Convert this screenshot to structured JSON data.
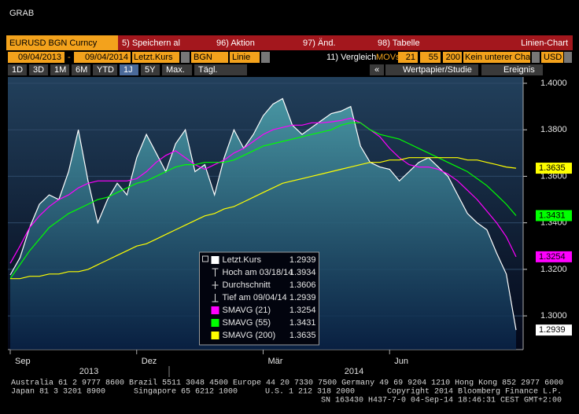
{
  "window_title": "GRAB",
  "command_bar": {
    "security": "EURUSD BGN Curncy",
    "buttons": [
      "5) Speichern al",
      "96) Aktion",
      "97) Änd.",
      "98) Tabelle"
    ],
    "chart_type": "Linien-Chart"
  },
  "settings_bar": {
    "start_date": "09/04/2013",
    "separator": "-",
    "end_date": "09/04/2014",
    "field": "Letzt.Kurs",
    "source": "BGN",
    "style": "Linie",
    "compare": "11) Vergleich",
    "mov_label": "MOVs",
    "mov_periods": [
      21,
      55,
      200
    ],
    "lower_chart": "Kein unterer Cha",
    "currency": "USD"
  },
  "period_bar": {
    "periods": [
      "1D",
      "3D",
      "1M",
      "6M",
      "YTD",
      "1J",
      "5Y",
      "Max.",
      "Tägl."
    ],
    "selected_period": "1J",
    "collapse": "«",
    "tools": [
      "Wertpapier/Studie",
      "Ereignis"
    ]
  },
  "chart_data": {
    "type": "line",
    "categories": [
      "Sep",
      null,
      null,
      null,
      null,
      null,
      null,
      null,
      null,
      null,
      null,
      null,
      null,
      "Dez",
      null,
      null,
      null,
      null,
      null,
      null,
      null,
      null,
      null,
      null,
      null,
      null,
      "Mär",
      null,
      null,
      null,
      null,
      null,
      null,
      null,
      null,
      null,
      null,
      null,
      null,
      "Jun",
      null,
      null,
      null,
      null,
      null,
      null,
      null,
      null,
      null,
      null,
      null,
      null,
      null
    ],
    "year_labels": [
      "2013",
      "2014"
    ],
    "series": [
      {
        "name": "Letzt.Kurs",
        "color": "#ffffff",
        "area_color": "#3f8f9c",
        "values": [
          1.3176,
          1.325,
          1.338,
          1.348,
          1.352,
          1.35,
          1.362,
          1.38,
          1.358,
          1.34,
          1.35,
          1.357,
          1.352,
          1.368,
          1.378,
          1.37,
          1.362,
          1.374,
          1.38,
          1.362,
          1.365,
          1.352,
          1.368,
          1.38,
          1.372,
          1.378,
          1.386,
          1.391,
          1.3934,
          1.382,
          1.378,
          1.381,
          1.384,
          1.387,
          1.388,
          1.39,
          1.373,
          1.366,
          1.364,
          1.363,
          1.358,
          1.362,
          1.366,
          1.368,
          1.364,
          1.36,
          1.352,
          1.344,
          1.34,
          1.337,
          1.327,
          1.318,
          1.2939
        ]
      },
      {
        "name": "SMAVG (21)",
        "color": "#ff00ff",
        "values": [
          1.3226,
          1.33,
          1.338,
          1.343,
          1.347,
          1.35,
          1.352,
          1.355,
          1.357,
          1.358,
          1.358,
          1.358,
          1.358,
          1.359,
          1.362,
          1.366,
          1.369,
          1.371,
          1.368,
          1.365,
          1.363,
          1.365,
          1.367,
          1.37,
          1.372,
          1.375,
          1.378,
          1.38,
          1.381,
          1.382,
          1.382,
          1.383,
          1.383,
          1.3834,
          1.384,
          1.385,
          1.383,
          1.38,
          1.377,
          1.372,
          1.368,
          1.365,
          1.364,
          1.364,
          1.363,
          1.361,
          1.358,
          1.354,
          1.35,
          1.345,
          1.34,
          1.334,
          1.3254
        ]
      },
      {
        "name": "SMAVG (55)",
        "color": "#00ff00",
        "values": [
          1.316,
          1.322,
          1.328,
          1.333,
          1.338,
          1.341,
          1.344,
          1.346,
          1.348,
          1.35,
          1.351,
          1.353,
          1.355,
          1.357,
          1.358,
          1.36,
          1.362,
          1.364,
          1.365,
          1.365,
          1.366,
          1.366,
          1.366,
          1.367,
          1.369,
          1.371,
          1.373,
          1.374,
          1.375,
          1.376,
          1.377,
          1.378,
          1.379,
          1.38,
          1.382,
          1.383,
          1.383,
          1.38,
          1.378,
          1.377,
          1.376,
          1.374,
          1.372,
          1.37,
          1.368,
          1.366,
          1.364,
          1.362,
          1.359,
          1.356,
          1.352,
          1.348,
          1.3431
        ]
      },
      {
        "name": "SMAVG (200)",
        "color": "#ffff00",
        "values": [
          1.316,
          1.316,
          1.317,
          1.317,
          1.318,
          1.318,
          1.319,
          1.319,
          1.32,
          1.322,
          1.324,
          1.326,
          1.328,
          1.33,
          1.331,
          1.333,
          1.335,
          1.337,
          1.339,
          1.341,
          1.343,
          1.344,
          1.346,
          1.347,
          1.349,
          1.351,
          1.353,
          1.355,
          1.357,
          1.358,
          1.359,
          1.36,
          1.361,
          1.362,
          1.363,
          1.364,
          1.365,
          1.366,
          1.366,
          1.367,
          1.367,
          1.368,
          1.368,
          1.368,
          1.368,
          1.368,
          1.368,
          1.367,
          1.367,
          1.366,
          1.365,
          1.364,
          1.3635
        ]
      }
    ],
    "ylim": [
      1.2855,
      1.4027
    ],
    "yticks": [
      {
        "value": 1.3,
        "label": "1.3000"
      },
      {
        "value": 1.32,
        "label": "1.3200"
      },
      {
        "value": 1.34,
        "label": "1.3400"
      },
      {
        "value": 1.36,
        "label": "1.3600"
      },
      {
        "value": 1.38,
        "label": "1.3800"
      },
      {
        "value": 1.4,
        "label": "1.4000"
      }
    ],
    "y_axis_side": "right",
    "grid": true,
    "last_value_tags": true,
    "legend": {
      "position": "bottom-center",
      "stats": [
        {
          "label": "Hoch am 03/18/14",
          "value": 1.3934
        },
        {
          "label": "Durchschnitt",
          "value": 1.3606
        },
        {
          "label": "Tief am 09/04/14",
          "value": 1.2939
        }
      ]
    }
  },
  "footer": {
    "contacts_1": "Australia 61 2 9777 8600 Brazil 5511 3048 4500 Europe 44 20 7330 7500 Germany 49 69 9204 1210 Hong Kong 852 2977 6000",
    "contacts_2": [
      "Japan 81 3 3201 8900",
      "Singapore 65 6212 1000",
      "U.S. 1 212 318 2000"
    ],
    "copyright": "Copyright 2014 Bloomberg Finance L.P.",
    "session": "SN 163430 H437-7-0 04-Sep-14 18:46:31 CEST GMT+2:00"
  }
}
